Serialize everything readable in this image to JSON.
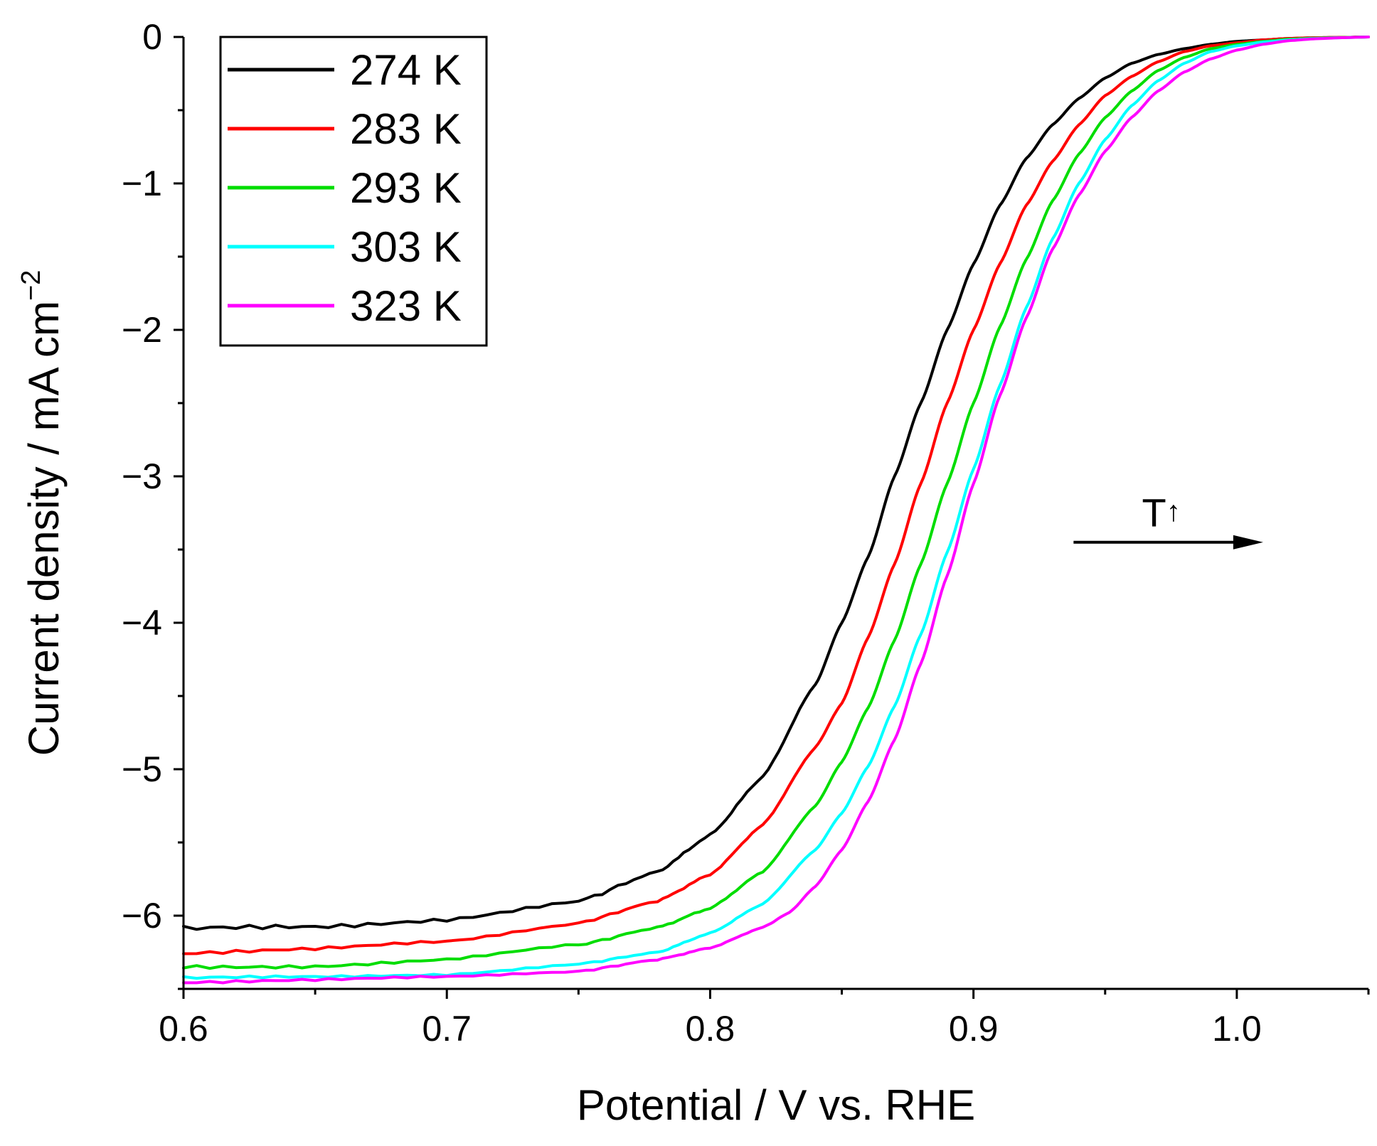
{
  "chart_data": {
    "type": "line",
    "title": "",
    "xlabel": "Potential / V vs. RHE",
    "ylabel_main": "Current density / mA cm",
    "ylabel_sup": "−2",
    "xlim": [
      0.6,
      1.05
    ],
    "ylim": [
      -6.5,
      0
    ],
    "xticks": [
      0.6,
      0.7,
      0.8,
      0.9,
      1.0
    ],
    "xtick_labels": [
      "0.6",
      "0.7",
      "0.8",
      "0.9",
      "1.0"
    ],
    "yticks": [
      0,
      -1,
      -2,
      -3,
      -4,
      -5,
      -6
    ],
    "ytick_labels": [
      "0",
      "−1",
      "−2",
      "−3",
      "−4",
      "−5",
      "−6"
    ],
    "legend_position": "top-left",
    "annotation": {
      "text": "T",
      "arrow_text": "↑",
      "arrow_from_x": 0.938,
      "arrow_to_x": 1.01,
      "arrow_y": -3.45
    },
    "series": [
      {
        "name": "274 K",
        "color": "#000000",
        "noise": 0.03,
        "x": [
          0.6,
          0.65,
          0.7,
          0.75,
          0.78,
          0.8,
          0.82,
          0.84,
          0.85,
          0.86,
          0.87,
          0.88,
          0.89,
          0.9,
          0.91,
          0.92,
          0.93,
          0.94,
          0.95,
          0.96,
          0.97,
          0.98,
          0.99,
          1.0,
          1.01,
          1.02,
          1.03,
          1.04,
          1.05
        ],
        "y": [
          -6.1,
          -6.08,
          -6.02,
          -5.9,
          -5.7,
          -5.45,
          -5.05,
          -4.42,
          -4.0,
          -3.55,
          -3.0,
          -2.5,
          -2.0,
          -1.55,
          -1.15,
          -0.83,
          -0.6,
          -0.42,
          -0.28,
          -0.18,
          -0.12,
          -0.08,
          -0.05,
          -0.03,
          -0.02,
          -0.01,
          -0.005,
          -0.003,
          0.0
        ]
      },
      {
        "name": "283 K",
        "color": "#ff0000",
        "noise": 0.02,
        "x": [
          0.6,
          0.65,
          0.7,
          0.75,
          0.78,
          0.8,
          0.82,
          0.84,
          0.85,
          0.86,
          0.87,
          0.88,
          0.89,
          0.9,
          0.91,
          0.92,
          0.93,
          0.94,
          0.95,
          0.96,
          0.97,
          0.98,
          0.99,
          1.0,
          1.01,
          1.02,
          1.03,
          1.04,
          1.05
        ],
        "y": [
          -6.25,
          -6.23,
          -6.18,
          -6.05,
          -5.9,
          -5.72,
          -5.38,
          -4.85,
          -4.55,
          -4.1,
          -3.6,
          -3.05,
          -2.5,
          -2.0,
          -1.55,
          -1.15,
          -0.85,
          -0.6,
          -0.4,
          -0.27,
          -0.17,
          -0.1,
          -0.06,
          -0.04,
          -0.02,
          -0.01,
          -0.005,
          -0.003,
          0.0
        ]
      },
      {
        "name": "293 K",
        "color": "#00dd00",
        "noise": 0.02,
        "x": [
          0.6,
          0.65,
          0.7,
          0.75,
          0.78,
          0.8,
          0.82,
          0.84,
          0.85,
          0.86,
          0.87,
          0.88,
          0.89,
          0.9,
          0.91,
          0.92,
          0.93,
          0.94,
          0.95,
          0.96,
          0.97,
          0.98,
          0.99,
          1.0,
          1.01,
          1.02,
          1.03,
          1.04,
          1.05
        ],
        "y": [
          -6.35,
          -6.34,
          -6.3,
          -6.2,
          -6.08,
          -5.95,
          -5.7,
          -5.25,
          -4.95,
          -4.58,
          -4.12,
          -3.6,
          -3.05,
          -2.5,
          -1.98,
          -1.52,
          -1.12,
          -0.8,
          -0.55,
          -0.37,
          -0.23,
          -0.14,
          -0.08,
          -0.05,
          -0.03,
          -0.015,
          -0.008,
          -0.004,
          0.0
        ]
      },
      {
        "name": "303 K",
        "color": "#00ffff",
        "noise": 0.015,
        "x": [
          0.6,
          0.65,
          0.7,
          0.75,
          0.78,
          0.8,
          0.82,
          0.84,
          0.85,
          0.86,
          0.87,
          0.88,
          0.89,
          0.9,
          0.91,
          0.92,
          0.93,
          0.94,
          0.95,
          0.96,
          0.97,
          0.98,
          0.99,
          1.0,
          1.01,
          1.02,
          1.03,
          1.04,
          1.05
        ],
        "y": [
          -6.43,
          -6.42,
          -6.4,
          -6.33,
          -6.25,
          -6.12,
          -5.92,
          -5.55,
          -5.3,
          -4.98,
          -4.57,
          -4.08,
          -3.52,
          -2.95,
          -2.38,
          -1.85,
          -1.38,
          -1.0,
          -0.7,
          -0.47,
          -0.3,
          -0.18,
          -0.1,
          -0.06,
          -0.035,
          -0.02,
          -0.01,
          -0.005,
          0.0
        ]
      },
      {
        "name": "323 K",
        "color": "#ff00ff",
        "noise": 0.015,
        "x": [
          0.6,
          0.65,
          0.7,
          0.75,
          0.78,
          0.8,
          0.82,
          0.83,
          0.84,
          0.85,
          0.86,
          0.87,
          0.88,
          0.89,
          0.9,
          0.91,
          0.92,
          0.93,
          0.94,
          0.95,
          0.96,
          0.97,
          0.98,
          0.99,
          1.0,
          1.01,
          1.02,
          1.03,
          1.04,
          1.05
        ],
        "y": [
          -6.45,
          -6.44,
          -6.42,
          -6.38,
          -6.3,
          -6.22,
          -6.08,
          -5.98,
          -5.8,
          -5.55,
          -5.22,
          -4.8,
          -4.28,
          -3.68,
          -3.05,
          -2.45,
          -1.92,
          -1.45,
          -1.08,
          -0.78,
          -0.55,
          -0.37,
          -0.24,
          -0.15,
          -0.09,
          -0.05,
          -0.025,
          -0.012,
          -0.005,
          0.0
        ]
      }
    ]
  }
}
